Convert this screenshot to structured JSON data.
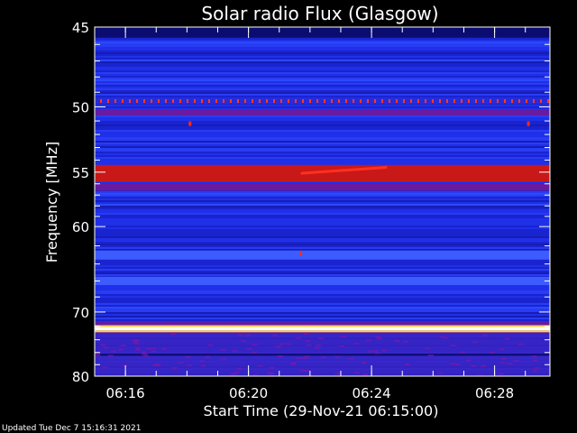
{
  "chart_data": {
    "type": "heatmap",
    "title": "Solar radio Flux (Glasgow)",
    "xlabel": "Start Time (29-Nov-21 06:15:00)",
    "ylabel": "Frequency [MHz]",
    "x_ticks": [
      "06:16",
      "06:20",
      "06:24",
      "06:28"
    ],
    "x_tick_minutes": [
      1,
      5,
      9,
      13
    ],
    "xlim_minutes": [
      0,
      14.8
    ],
    "y_ticks": [
      45,
      50,
      55,
      60,
      70,
      80
    ],
    "ylim": [
      45,
      80
    ],
    "y_scale": "reciprocal",
    "grid": false,
    "colors": {
      "background": "#000000",
      "base": "#2030e8",
      "hot": "#ffffff",
      "warm": "#ffd24a",
      "red": "#c81818",
      "purple": "#6a1aa0"
    },
    "bands": [
      {
        "f_low": 45.0,
        "f_high": 45.6,
        "level": "dark"
      },
      {
        "f_low": 49.4,
        "f_high": 49.8,
        "level": "red-dots"
      },
      {
        "f_low": 50.2,
        "f_high": 50.6,
        "level": "purple"
      },
      {
        "f_low": 54.4,
        "f_high": 55.8,
        "level": "red"
      },
      {
        "f_low": 56.0,
        "f_high": 56.6,
        "level": "purple"
      },
      {
        "f_low": 62.5,
        "f_high": 63.5,
        "level": "light"
      },
      {
        "f_low": 65.5,
        "f_high": 66.5,
        "level": "light"
      },
      {
        "f_low": 71.4,
        "f_high": 73.0,
        "level": "purple"
      },
      {
        "f_low": 72.1,
        "f_high": 72.6,
        "level": "hot"
      },
      {
        "f_low": 73.0,
        "f_high": 80.0,
        "level": "purple-mix"
      },
      {
        "f_low": 76.2,
        "f_high": 76.5,
        "level": "dark"
      }
    ],
    "burst": {
      "t_start": 6.7,
      "t_end": 9.5,
      "f_start": 55.1,
      "f_end": 54.6
    },
    "spots": [
      {
        "t": 3.1,
        "f": 51.2
      },
      {
        "t": 14.1,
        "f": 51.2
      },
      {
        "t": 6.7,
        "f": 62.8
      }
    ]
  },
  "footer": {
    "updated": "Updated Tue Dec  7 15:16:31 2021"
  }
}
